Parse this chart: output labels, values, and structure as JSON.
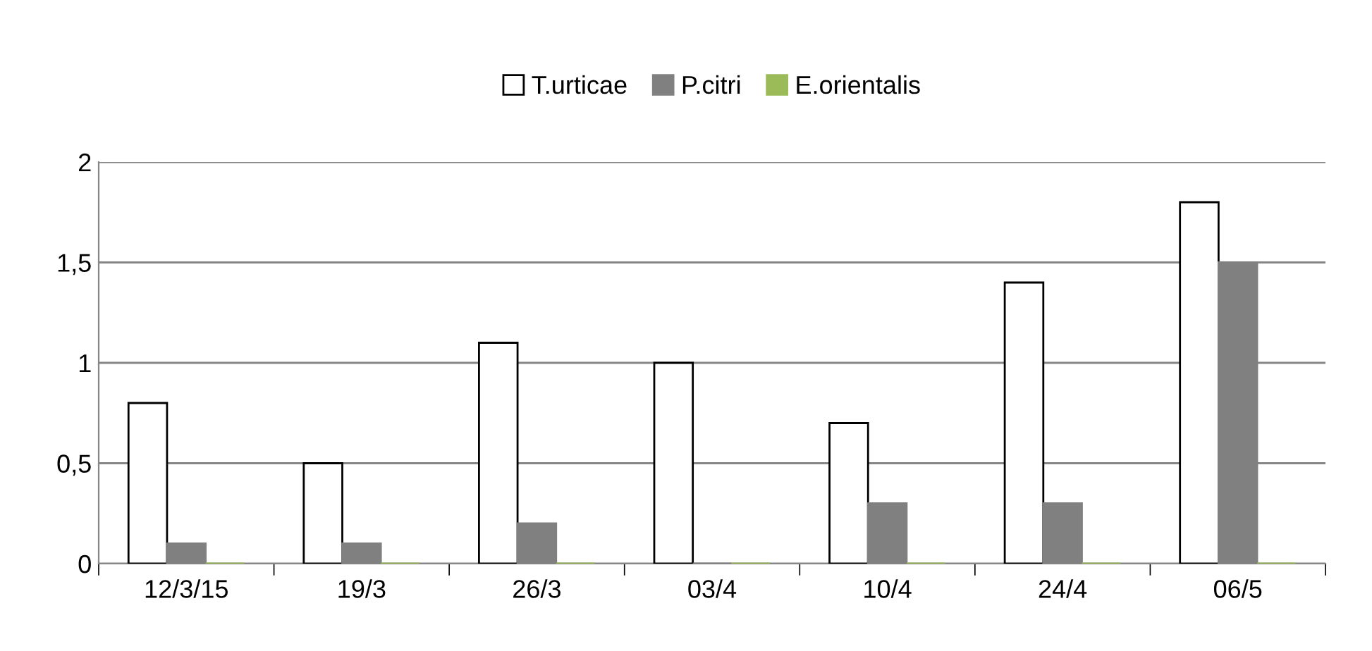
{
  "chart_data": {
    "type": "bar",
    "categories": [
      "12/3/15",
      "19/3",
      "26/3",
      "03/4",
      "10/4",
      "24/4",
      "06/5"
    ],
    "series": [
      {
        "name": "T.urticae",
        "color": "#ffffff",
        "values": [
          0.8,
          0.5,
          1.1,
          1.0,
          0.7,
          1.4,
          1.8
        ]
      },
      {
        "name": "P.citri",
        "color": "#808080",
        "values": [
          0.1,
          0.1,
          0.2,
          0,
          0.3,
          0.3,
          1.5
        ]
      },
      {
        "name": "E.orientalis",
        "color": "#9bbb59",
        "values": [
          0,
          0,
          0,
          0,
          0,
          0,
          0
        ]
      }
    ],
    "ylim": [
      0,
      2
    ],
    "yticks": [
      0,
      {
        "value": 0.5,
        "label": "0,5"
      },
      1,
      {
        "value": 1.5,
        "label": "1,5"
      },
      2
    ],
    "grid": "y",
    "legend": "top"
  }
}
